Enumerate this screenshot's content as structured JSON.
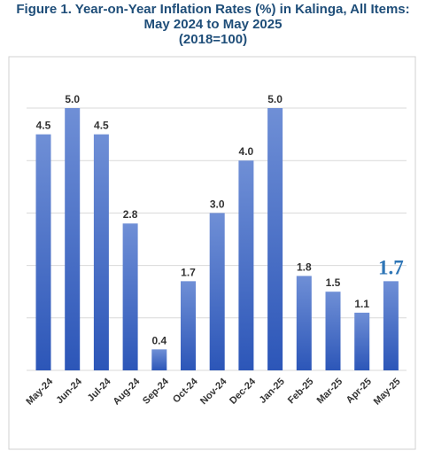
{
  "chart_data": {
    "type": "bar",
    "title": "Figure 1. Year-on-Year Inflation Rates (%) in Kalinga, All Items:",
    "subtitle": "May 2024 to May 2025",
    "subtitle2": "(2018=100)",
    "xlabel": "",
    "ylabel": "",
    "ylim": [
      0,
      5
    ],
    "grid": true,
    "categories": [
      "May-24",
      "Jun-24",
      "Jul-24",
      "Aug-24",
      "Sep-24",
      "Oct-24",
      "Nov-24",
      "Dec-24",
      "Jan-25",
      "Feb-25",
      "Mar-25",
      "Apr-25",
      "May-25"
    ],
    "values": [
      4.5,
      5.0,
      4.5,
      2.8,
      0.4,
      1.7,
      3.0,
      4.0,
      5.0,
      1.8,
      1.5,
      1.1,
      1.7
    ],
    "value_labels": [
      "4.5",
      "5.0",
      "4.5",
      "2.8",
      "0.4",
      "1.7",
      "3.0",
      "4.0",
      "5.0",
      "1.8",
      "1.5",
      "1.1",
      "1.7"
    ],
    "highlight_index": 12,
    "colors": {
      "bar_top": "#6f8fd6",
      "bar_bottom": "#2c56b8",
      "title": "#1f4e79",
      "highlight_label": "#2e75b6",
      "label": "#333333",
      "grid": "#d9d9d9"
    }
  }
}
